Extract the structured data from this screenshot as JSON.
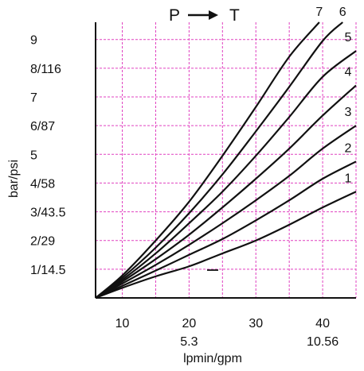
{
  "chart_data": {
    "type": "line",
    "title_from": "P",
    "title_to": "T",
    "xlabel": "lpmin/gpm",
    "ylabel": "bar/psi",
    "xlim": [
      6,
      45
    ],
    "ylim": [
      0,
      9.6
    ],
    "x_ticks": [
      {
        "x": 10,
        "label": "10",
        "sub": ""
      },
      {
        "x": 20,
        "label": "20",
        "sub": "5.3"
      },
      {
        "x": 30,
        "label": "30",
        "sub": ""
      },
      {
        "x": 40,
        "label": "40",
        "sub": "10.56"
      }
    ],
    "y_ticks": [
      {
        "y": 1,
        "label": "1/14.5"
      },
      {
        "y": 2,
        "label": "2/29"
      },
      {
        "y": 3,
        "label": "3/43.5"
      },
      {
        "y": 4,
        "label": "4/58"
      },
      {
        "y": 5,
        "label": "5"
      },
      {
        "y": 6,
        "label": "6/87"
      },
      {
        "y": 7,
        "label": "7"
      },
      {
        "y": 8,
        "label": "8/116"
      },
      {
        "y": 9,
        "label": "9"
      }
    ],
    "grid": true,
    "grid_color": "#e040c0",
    "series": [
      {
        "name": "1",
        "x": [
          6,
          10,
          15,
          20,
          25,
          30,
          35,
          40,
          45
        ],
        "y": [
          0,
          0.35,
          0.75,
          1.1,
          1.55,
          2.0,
          2.55,
          3.15,
          3.7
        ]
      },
      {
        "name": "2",
        "x": [
          6,
          10,
          15,
          20,
          25,
          30,
          35,
          40,
          45
        ],
        "y": [
          0,
          0.42,
          0.95,
          1.5,
          2.05,
          2.7,
          3.4,
          4.15,
          4.75
        ]
      },
      {
        "name": "3",
        "x": [
          6,
          10,
          15,
          20,
          25,
          30,
          35,
          40,
          45
        ],
        "y": [
          0,
          0.5,
          1.15,
          1.85,
          2.6,
          3.4,
          4.25,
          5.2,
          6.0
        ]
      },
      {
        "name": "4",
        "x": [
          6,
          10,
          15,
          20,
          25,
          30,
          35,
          40,
          45
        ],
        "y": [
          0,
          0.57,
          1.35,
          2.2,
          3.15,
          4.15,
          5.2,
          6.35,
          7.4
        ]
      },
      {
        "name": "5",
        "x": [
          6,
          10,
          15,
          20,
          25,
          30,
          35,
          40,
          45
        ],
        "y": [
          0,
          0.63,
          1.55,
          2.6,
          3.7,
          4.95,
          6.3,
          7.7,
          8.6
        ]
      },
      {
        "name": "6",
        "x": [
          6,
          10,
          15,
          20,
          25,
          30,
          35,
          40,
          43
        ],
        "y": [
          0,
          0.7,
          1.75,
          2.95,
          4.3,
          5.8,
          7.35,
          8.95,
          9.6
        ]
      },
      {
        "name": "7",
        "x": [
          6,
          10,
          15,
          20,
          25,
          30,
          35,
          39.5
        ],
        "y": [
          0,
          0.78,
          2.0,
          3.35,
          4.95,
          6.65,
          8.4,
          9.6
        ]
      }
    ]
  }
}
